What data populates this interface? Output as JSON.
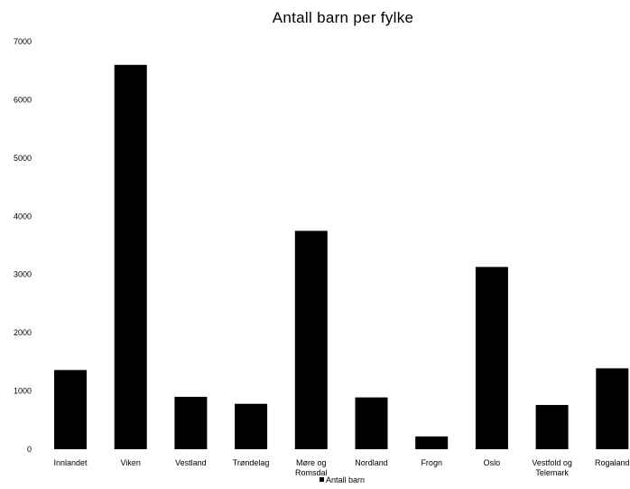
{
  "chart_data": {
    "type": "bar",
    "title": "Antall barn per fylke",
    "categories": [
      "Innlandet",
      "Viken",
      "Vestland",
      "Trøndelag",
      "Møre og Romsdal",
      "Nordland",
      "Frogn",
      "Oslo",
      "Vestfold og Telemark",
      "Rogaland"
    ],
    "category_lines": [
      [
        "Innlandet"
      ],
      [
        "Viken"
      ],
      [
        "Vestland"
      ],
      [
        "Trøndelag"
      ],
      [
        "Møre og",
        "Romsdal"
      ],
      [
        "Nordland"
      ],
      [
        "Frogn"
      ],
      [
        "Oslo"
      ],
      [
        "Vestfold og",
        "Telemark"
      ],
      [
        "Rogaland"
      ]
    ],
    "series": [
      {
        "name": "Antall barn",
        "values": [
          1360,
          6600,
          900,
          780,
          3750,
          890,
          220,
          3130,
          760,
          1390
        ]
      }
    ],
    "ylim": [
      0,
      7000
    ],
    "yticks": [
      0,
      1000,
      2000,
      3000,
      4000,
      5000,
      6000,
      7000
    ],
    "bar_color": "#000000",
    "grid": false,
    "legend_position": "bottom"
  }
}
